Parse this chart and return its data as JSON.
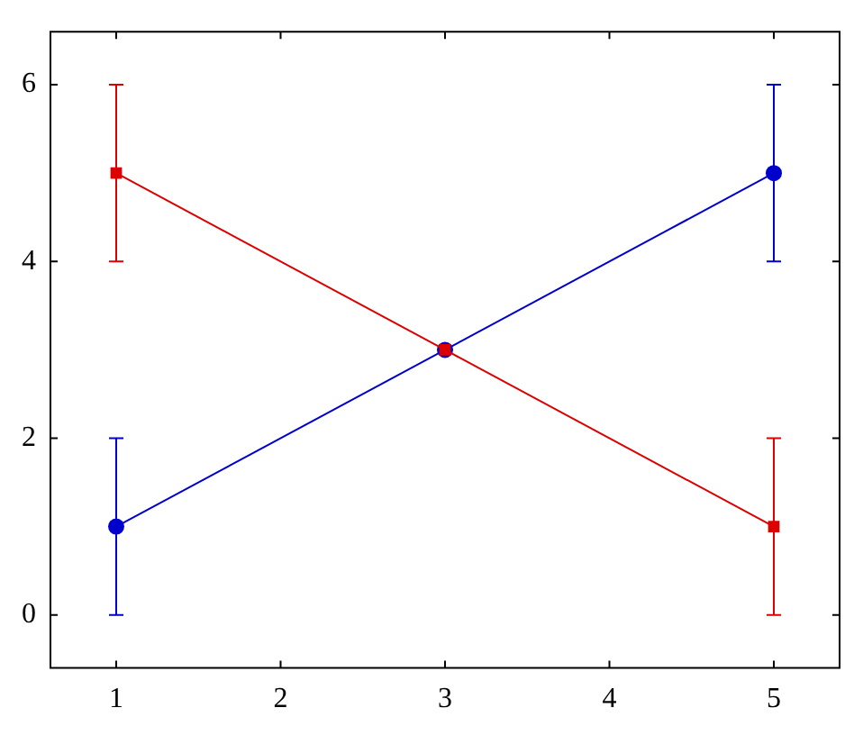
{
  "chart_data": {
    "type": "line",
    "x": [
      1,
      3,
      5
    ],
    "series": [
      {
        "color": "#0000cc",
        "values": [
          1,
          3,
          5
        ],
        "errors": [
          1,
          null,
          1
        ],
        "marker": "circle"
      },
      {
        "color": "#dd0000",
        "values": [
          5,
          3,
          1
        ],
        "errors": [
          1,
          null,
          1
        ],
        "marker": "square"
      }
    ],
    "xlim": [
      0.6,
      5.4
    ],
    "xticks": [
      1,
      2,
      3,
      4,
      5
    ],
    "ylim": [
      -0.6,
      6.6
    ],
    "yticks": [
      0,
      2,
      4,
      6
    ],
    "grid": false,
    "legend": false,
    "line_style": "solid"
  }
}
